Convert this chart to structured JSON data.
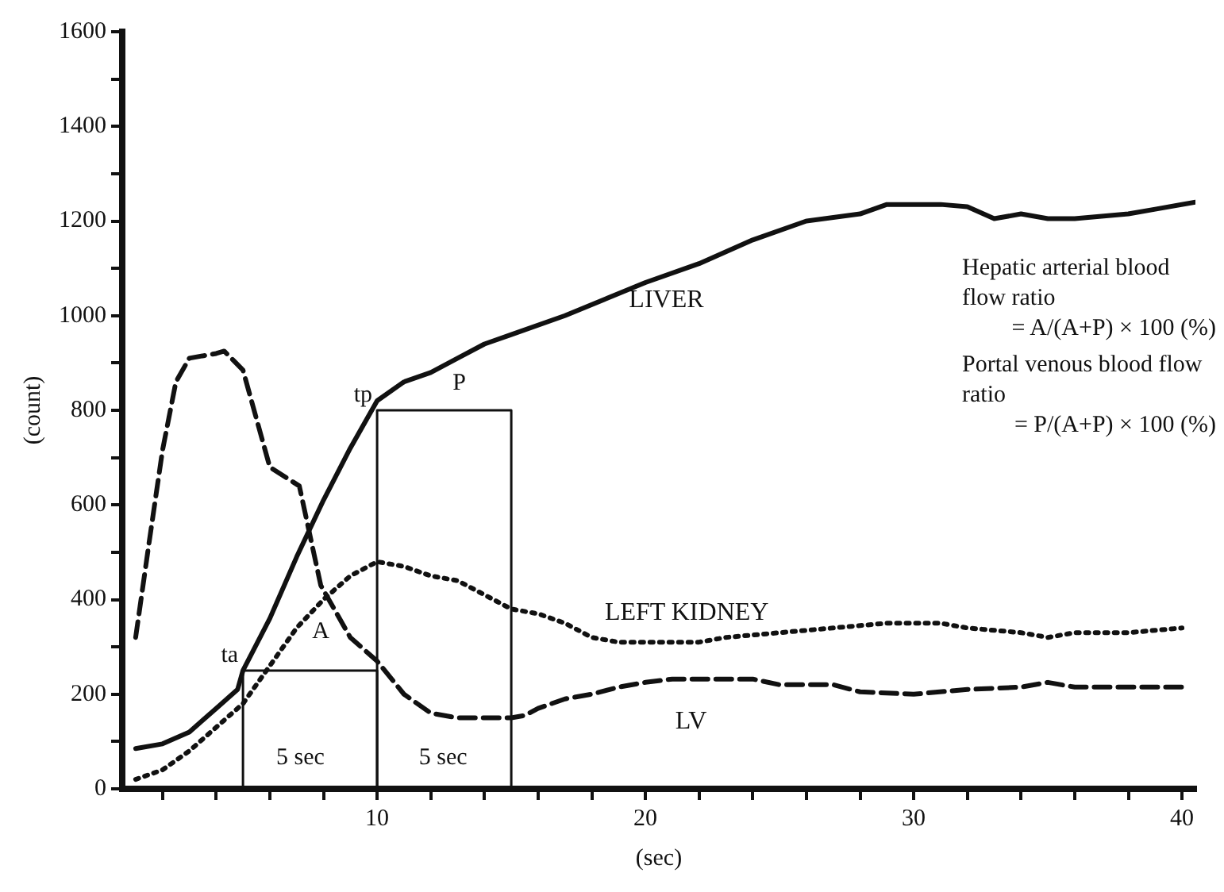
{
  "chart_data": {
    "type": "line",
    "xlabel": "(sec)",
    "ylabel": "(count)",
    "xlim": [
      0.5,
      40.5
    ],
    "ylim": [
      0,
      1600
    ],
    "xticks": [
      {
        "value": 2,
        "label": null
      },
      {
        "value": 4,
        "label": null
      },
      {
        "value": 6,
        "label": null
      },
      {
        "value": 8,
        "label": null
      },
      10,
      {
        "value": 12,
        "label": null
      },
      {
        "value": 14,
        "label": null
      },
      {
        "value": 16,
        "label": null
      },
      {
        "value": 18,
        "label": null
      },
      20,
      {
        "value": 22,
        "label": null
      },
      {
        "value": 24,
        "label": null
      },
      {
        "value": 26,
        "label": null
      },
      {
        "value": 28,
        "label": null
      },
      30,
      {
        "value": 32,
        "label": null
      },
      {
        "value": 34,
        "label": null
      },
      {
        "value": 36,
        "label": null
      },
      {
        "value": 38,
        "label": null
      },
      40
    ],
    "yticks": [
      0,
      {
        "value": 100,
        "label": null
      },
      200,
      {
        "value": 300,
        "label": null
      },
      400,
      {
        "value": 500,
        "label": null
      },
      600,
      {
        "value": 700,
        "label": null
      },
      800,
      {
        "value": 900,
        "label": null
      },
      1000,
      {
        "value": 1100,
        "label": null
      },
      1200,
      {
        "value": 1300,
        "label": null
      },
      1400,
      {
        "value": 1500,
        "label": null
      },
      1600
    ],
    "grid": false,
    "legend": false,
    "marker": "none",
    "series": [
      {
        "name": "LIVER",
        "color": "#111111",
        "line_style": "solid",
        "x": [
          1,
          2,
          3,
          4,
          4.8,
          5,
          6,
          7,
          8,
          9,
          10,
          11,
          12,
          13,
          14,
          15,
          17,
          20,
          22,
          24,
          26,
          28,
          29,
          31,
          32,
          33,
          34,
          35,
          36,
          38,
          39,
          40.5
        ],
        "values": [
          85,
          95,
          120,
          170,
          210,
          250,
          360,
          490,
          610,
          720,
          820,
          860,
          880,
          910,
          940,
          960,
          1000,
          1070,
          1110,
          1160,
          1200,
          1215,
          1235,
          1235,
          1230,
          1205,
          1215,
          1205,
          1205,
          1215,
          1225,
          1240
        ]
      },
      {
        "name": "LEFT KIDNEY",
        "color": "#111111",
        "line_style": "dotted",
        "x": [
          1,
          2,
          3,
          4,
          5,
          6,
          7,
          8,
          9,
          10,
          11,
          12,
          13,
          14,
          15,
          16,
          17,
          18,
          19,
          20,
          22,
          23,
          25,
          27,
          29,
          31,
          32,
          34,
          35,
          36,
          38,
          40
        ],
        "values": [
          20,
          40,
          80,
          130,
          180,
          260,
          340,
          400,
          450,
          480,
          470,
          450,
          440,
          410,
          380,
          370,
          350,
          320,
          310,
          310,
          310,
          320,
          330,
          340,
          350,
          350,
          340,
          330,
          320,
          330,
          330,
          340
        ]
      },
      {
        "name": "LV",
        "color": "#111111",
        "line_style": "dashed",
        "x": [
          1,
          1.5,
          2,
          2.5,
          3,
          4,
          4.3,
          5,
          6,
          7.1,
          7.9,
          9,
          10,
          11,
          12,
          13,
          15,
          15.5,
          16,
          17,
          18,
          19,
          20,
          21,
          24,
          25,
          27,
          28,
          30,
          32,
          34,
          35,
          36,
          38,
          40
        ],
        "values": [
          320,
          520,
          715,
          860,
          910,
          920,
          925,
          885,
          680,
          640,
          430,
          320,
          270,
          200,
          160,
          150,
          150,
          155,
          170,
          190,
          200,
          215,
          225,
          232,
          232,
          220,
          220,
          205,
          200,
          210,
          215,
          225,
          215,
          215,
          215
        ]
      },
      {
        "color": "#111111",
        "line_style": "solid",
        "x": [
          5,
          5,
          10,
          10
        ],
        "values": [
          0,
          250,
          250,
          0
        ]
      },
      {
        "color": "#111111",
        "line_style": "solid",
        "x": [
          10,
          10,
          15,
          15
        ],
        "values": [
          0,
          800,
          800,
          0
        ]
      }
    ],
    "annotations": [
      {
        "text": "ta",
        "x": 5,
        "y": 250
      },
      {
        "text": "tp",
        "x": 10,
        "y": 800
      },
      "A",
      "P",
      "5 sec",
      "5 sec",
      "Hepatic arterial blood flow ratio",
      "= A/(A+P) × 100 (%)",
      "Portal venous blood flow ratio",
      "= P/(A+P) × 100 (%)"
    ]
  }
}
